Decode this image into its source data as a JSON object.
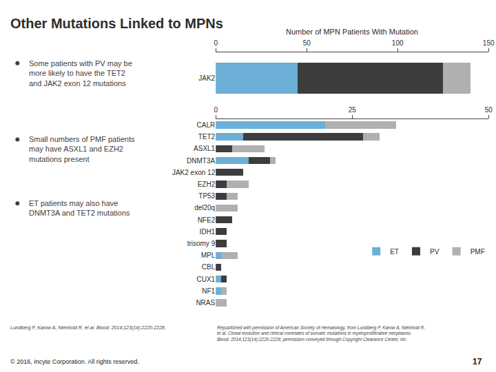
{
  "title": "Other Mutations Linked to MPNs",
  "annotations": [
    "Some patients with PV may be\nmore likely to have the TET2\nand JAK2 exon 12 mutations",
    "Small numbers of PMF patients\nmay have ASXL1 and EZH2\nmutations present",
    "ET patients may also have\nDNMT3A and TET2 mutations",
    "Lundberg P, Karow A, Nienhold R, et al. Blood. 2014;123(14):2220-2228.",
    "Republished with permission of American Society of Hematology, from Lundberg P, Karow A, Nienhold R,\net al. Clonal evolution and clinical correlates of somatic mutations in myeloproliferative neoplasms.\nBlood. 2014;123(14):2220-2228; permission conveyed through Copyright Clearance Center, Inc.",
    "© 2016, Incyte Corporation. All rights reserved.",
    "17"
  ],
  "chart_data": [
    {
      "type": "bar",
      "title": "Number of MPN Patients With Mutation",
      "orientation": "horizontal",
      "stacked": true,
      "categories": [
        "JAK2"
      ],
      "series": [
        {
          "name": "ET",
          "color": "#6baed6",
          "values": [
            45
          ]
        },
        {
          "name": "PV",
          "color": "#3d3d3d",
          "values": [
            80
          ]
        },
        {
          "name": "PMF",
          "color": "#b0b0b0",
          "values": [
            15
          ]
        }
      ],
      "xlim": [
        0,
        150
      ],
      "xticks": [
        0,
        50,
        100,
        150
      ],
      "grid": false,
      "legend": false
    },
    {
      "type": "bar",
      "orientation": "horizontal",
      "stacked": true,
      "categories": [
        "CALR",
        "TET2",
        "ASXL1",
        "DNMT3A",
        "JAK2 exon 12",
        "EZH2",
        "TP53",
        "del20q",
        "NFE2",
        "IDH1",
        "trisomy 9",
        "MPL",
        "CBL",
        "CUX1",
        "NF1",
        "NRAS"
      ],
      "series": [
        {
          "name": "ET",
          "color": "#6baed6",
          "values": [
            20,
            5,
            0,
            6,
            0,
            0,
            0,
            0,
            0,
            0,
            0,
            1,
            0,
            1,
            1,
            0
          ]
        },
        {
          "name": "PV",
          "color": "#3d3d3d",
          "values": [
            0,
            22,
            3,
            4,
            5,
            2,
            2,
            0,
            3,
            2,
            2,
            0,
            1,
            1,
            0,
            0
          ]
        },
        {
          "name": "PMF",
          "color": "#b0b0b0",
          "values": [
            13,
            3,
            6,
            1,
            0,
            4,
            2,
            4,
            0,
            0,
            0,
            3,
            0,
            0,
            1,
            2
          ]
        }
      ],
      "xlim": [
        0,
        50
      ],
      "xticks": [
        0,
        25,
        50
      ],
      "grid": false,
      "legend": "lower right"
    }
  ]
}
